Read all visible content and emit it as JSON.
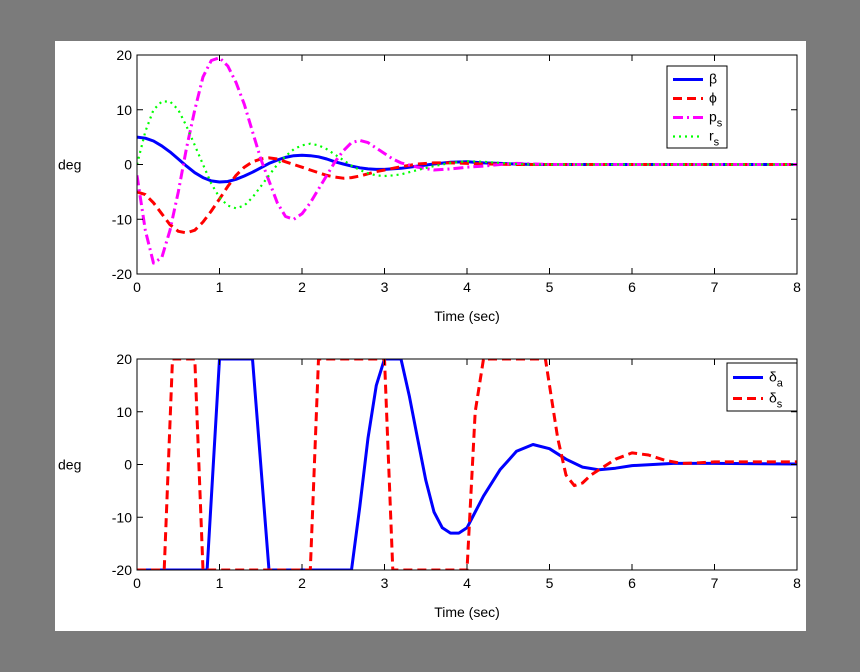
{
  "chart_data": [
    {
      "type": "line",
      "xlabel": "Time (sec)",
      "ylabel": "deg",
      "xlim": [
        0,
        8
      ],
      "ylim": [
        -20,
        20
      ],
      "xticks": [
        "0",
        "1",
        "2",
        "3",
        "4",
        "5",
        "6",
        "7",
        "8"
      ],
      "yticks": [
        "20",
        "10",
        "0",
        "-10",
        "-20"
      ],
      "grid": false,
      "legend_position": "top-right",
      "series": [
        {
          "name": "β",
          "name_sub": "",
          "color": "#0000ff",
          "style": "solid",
          "x": [
            0,
            0.1,
            0.2,
            0.3,
            0.4,
            0.5,
            0.6,
            0.7,
            0.8,
            0.9,
            1.0,
            1.1,
            1.2,
            1.3,
            1.4,
            1.5,
            1.6,
            1.7,
            1.8,
            1.9,
            2.0,
            2.1,
            2.2,
            2.3,
            2.4,
            2.5,
            2.6,
            2.7,
            2.8,
            2.9,
            3.0,
            3.2,
            3.4,
            3.6,
            3.8,
            4.0,
            4.2,
            4.4,
            4.6,
            4.8,
            5.0,
            6.0,
            7.0,
            8.0
          ],
          "y": [
            5,
            4.8,
            4.3,
            3.4,
            2.3,
            1,
            -0.3,
            -1.5,
            -2.4,
            -3,
            -3.2,
            -3.1,
            -2.7,
            -2.1,
            -1.4,
            -0.6,
            0.2,
            0.8,
            1.3,
            1.6,
            1.7,
            1.6,
            1.4,
            1,
            0.5,
            0.1,
            -0.3,
            -0.6,
            -0.8,
            -0.9,
            -0.9,
            -0.7,
            -0.3,
            0.1,
            0.4,
            0.5,
            0.3,
            0.2,
            0.1,
            0,
            0,
            0,
            0,
            0
          ]
        },
        {
          "name": "ϕ",
          "name_sub": "",
          "color": "#ff0000",
          "style": "dashed",
          "x": [
            0,
            0.1,
            0.2,
            0.3,
            0.4,
            0.5,
            0.6,
            0.7,
            0.8,
            0.9,
            1.0,
            1.1,
            1.2,
            1.3,
            1.4,
            1.5,
            1.6,
            1.7,
            1.8,
            1.9,
            2.0,
            2.1,
            2.2,
            2.3,
            2.4,
            2.5,
            2.6,
            2.7,
            2.8,
            2.9,
            3.0,
            3.2,
            3.4,
            3.6,
            3.8,
            4.0,
            4.2,
            4.4,
            4.6,
            4.8,
            5.0,
            6.0,
            7.0,
            8.0
          ],
          "y": [
            -5,
            -5.5,
            -7,
            -9,
            -11,
            -12.2,
            -12.5,
            -12,
            -10.5,
            -8.5,
            -6.3,
            -4,
            -2,
            -0.5,
            0.5,
            1,
            1.2,
            1,
            0.5,
            0,
            -0.5,
            -1,
            -1.5,
            -2,
            -2.3,
            -2.5,
            -2.4,
            -2.1,
            -1.7,
            -1.3,
            -1,
            -0.4,
            0.1,
            0.3,
            0.3,
            0.2,
            0.1,
            0.05,
            0,
            0,
            0,
            0,
            0,
            0
          ]
        },
        {
          "name": "p",
          "name_sub": "s",
          "color": "#ff00ff",
          "style": "dashdot",
          "x": [
            0,
            0.1,
            0.2,
            0.3,
            0.4,
            0.5,
            0.6,
            0.7,
            0.8,
            0.9,
            1.0,
            1.1,
            1.2,
            1.3,
            1.4,
            1.5,
            1.6,
            1.7,
            1.8,
            1.9,
            2.0,
            2.1,
            2.2,
            2.3,
            2.4,
            2.5,
            2.6,
            2.7,
            2.8,
            2.9,
            3.0,
            3.1,
            3.2,
            3.4,
            3.6,
            3.8,
            4.0,
            4.2,
            4.4,
            4.6,
            4.8,
            5.0,
            6.0,
            7.0,
            8.0
          ],
          "y": [
            -2,
            -12,
            -18,
            -17,
            -12,
            -5,
            3,
            10,
            16,
            19,
            19.5,
            18,
            15,
            11,
            6,
            1,
            -3,
            -7,
            -9.5,
            -10,
            -9,
            -7,
            -4.5,
            -2,
            0.5,
            2.5,
            4,
            4.4,
            4,
            3,
            2,
            1,
            0.3,
            -0.5,
            -1,
            -0.8,
            -0.5,
            -0.3,
            0,
            0.2,
            0.1,
            0,
            0,
            0,
            0
          ]
        },
        {
          "name": "r",
          "name_sub": "s",
          "color": "#00ff00",
          "style": "dotted",
          "x": [
            0,
            0.1,
            0.2,
            0.3,
            0.4,
            0.5,
            0.6,
            0.7,
            0.8,
            0.9,
            1.0,
            1.1,
            1.2,
            1.3,
            1.4,
            1.5,
            1.6,
            1.7,
            1.8,
            1.9,
            2.0,
            2.1,
            2.2,
            2.3,
            2.4,
            2.5,
            2.6,
            2.7,
            2.8,
            2.9,
            3.0,
            3.1,
            3.2,
            3.4,
            3.6,
            3.8,
            4.0,
            4.2,
            4.4,
            4.6,
            4.8,
            5.0,
            6.0,
            7.0,
            8.0
          ],
          "y": [
            0,
            6,
            10,
            11.5,
            11.5,
            10,
            7,
            3.5,
            0,
            -3.5,
            -6,
            -7.5,
            -8,
            -7.5,
            -6,
            -4,
            -2,
            0,
            1.5,
            2.8,
            3.5,
            3.8,
            3.5,
            2.8,
            1.8,
            0.8,
            -0.2,
            -1,
            -1.6,
            -2,
            -2.1,
            -2,
            -1.8,
            -1,
            -0.3,
            0.3,
            0.6,
            0.5,
            0.3,
            0.1,
            0,
            0,
            0,
            0,
            0
          ]
        }
      ]
    },
    {
      "type": "line",
      "xlabel": "Time (sec)",
      "ylabel": "deg",
      "xlim": [
        0,
        8
      ],
      "ylim": [
        -20,
        20
      ],
      "xticks": [
        "0",
        "1",
        "2",
        "3",
        "4",
        "5",
        "6",
        "7",
        "8"
      ],
      "yticks": [
        "20",
        "10",
        "0",
        "-10",
        "-20"
      ],
      "grid": false,
      "legend_position": "top-right",
      "series": [
        {
          "name": "δ",
          "name_sub": "a",
          "color": "#0000ff",
          "style": "solid",
          "x": [
            0,
            0.5,
            0.85,
            1.0,
            1.4,
            1.6,
            2.0,
            2.6,
            2.7,
            2.8,
            2.9,
            3.0,
            3.2,
            3.3,
            3.4,
            3.5,
            3.6,
            3.7,
            3.8,
            3.9,
            4.0,
            4.1,
            4.2,
            4.4,
            4.6,
            4.8,
            5.0,
            5.2,
            5.4,
            5.6,
            5.8,
            6.0,
            6.5,
            7.0,
            8.0
          ],
          "y": [
            -20,
            -20,
            -20,
            20,
            20,
            -20,
            -20,
            -20,
            -8,
            5,
            15,
            20,
            20,
            13,
            5,
            -3,
            -9,
            -12,
            -13,
            -13,
            -12,
            -9,
            -6,
            -1,
            2.5,
            3.8,
            3,
            1,
            -0.5,
            -1,
            -0.7,
            -0.2,
            0.2,
            0.2,
            0.1
          ]
        },
        {
          "name": "δ",
          "name_sub": "s",
          "color": "#ff0000",
          "style": "dashed",
          "x": [
            0,
            0.2,
            0.33,
            0.43,
            0.7,
            0.8,
            1.0,
            1.6,
            2.0,
            2.1,
            2.2,
            2.5,
            3.0,
            3.1,
            3.2,
            3.6,
            4.0,
            4.1,
            4.2,
            4.7,
            4.95,
            5.1,
            5.2,
            5.3,
            5.4,
            5.5,
            5.6,
            5.8,
            6.0,
            6.2,
            6.4,
            6.6,
            6.8,
            7.0,
            7.5,
            8.0
          ],
          "y": [
            -20,
            -20,
            -20,
            20,
            20,
            -20,
            -20,
            -20,
            -20,
            -20,
            20,
            20,
            20,
            -20,
            -20,
            -20,
            -20,
            10,
            20,
            20,
            20,
            5,
            -2,
            -4,
            -3.5,
            -2,
            -1,
            1,
            2.2,
            1.8,
            0.8,
            0.2,
            0.3,
            0.5,
            0.5,
            0.5
          ]
        }
      ]
    }
  ]
}
